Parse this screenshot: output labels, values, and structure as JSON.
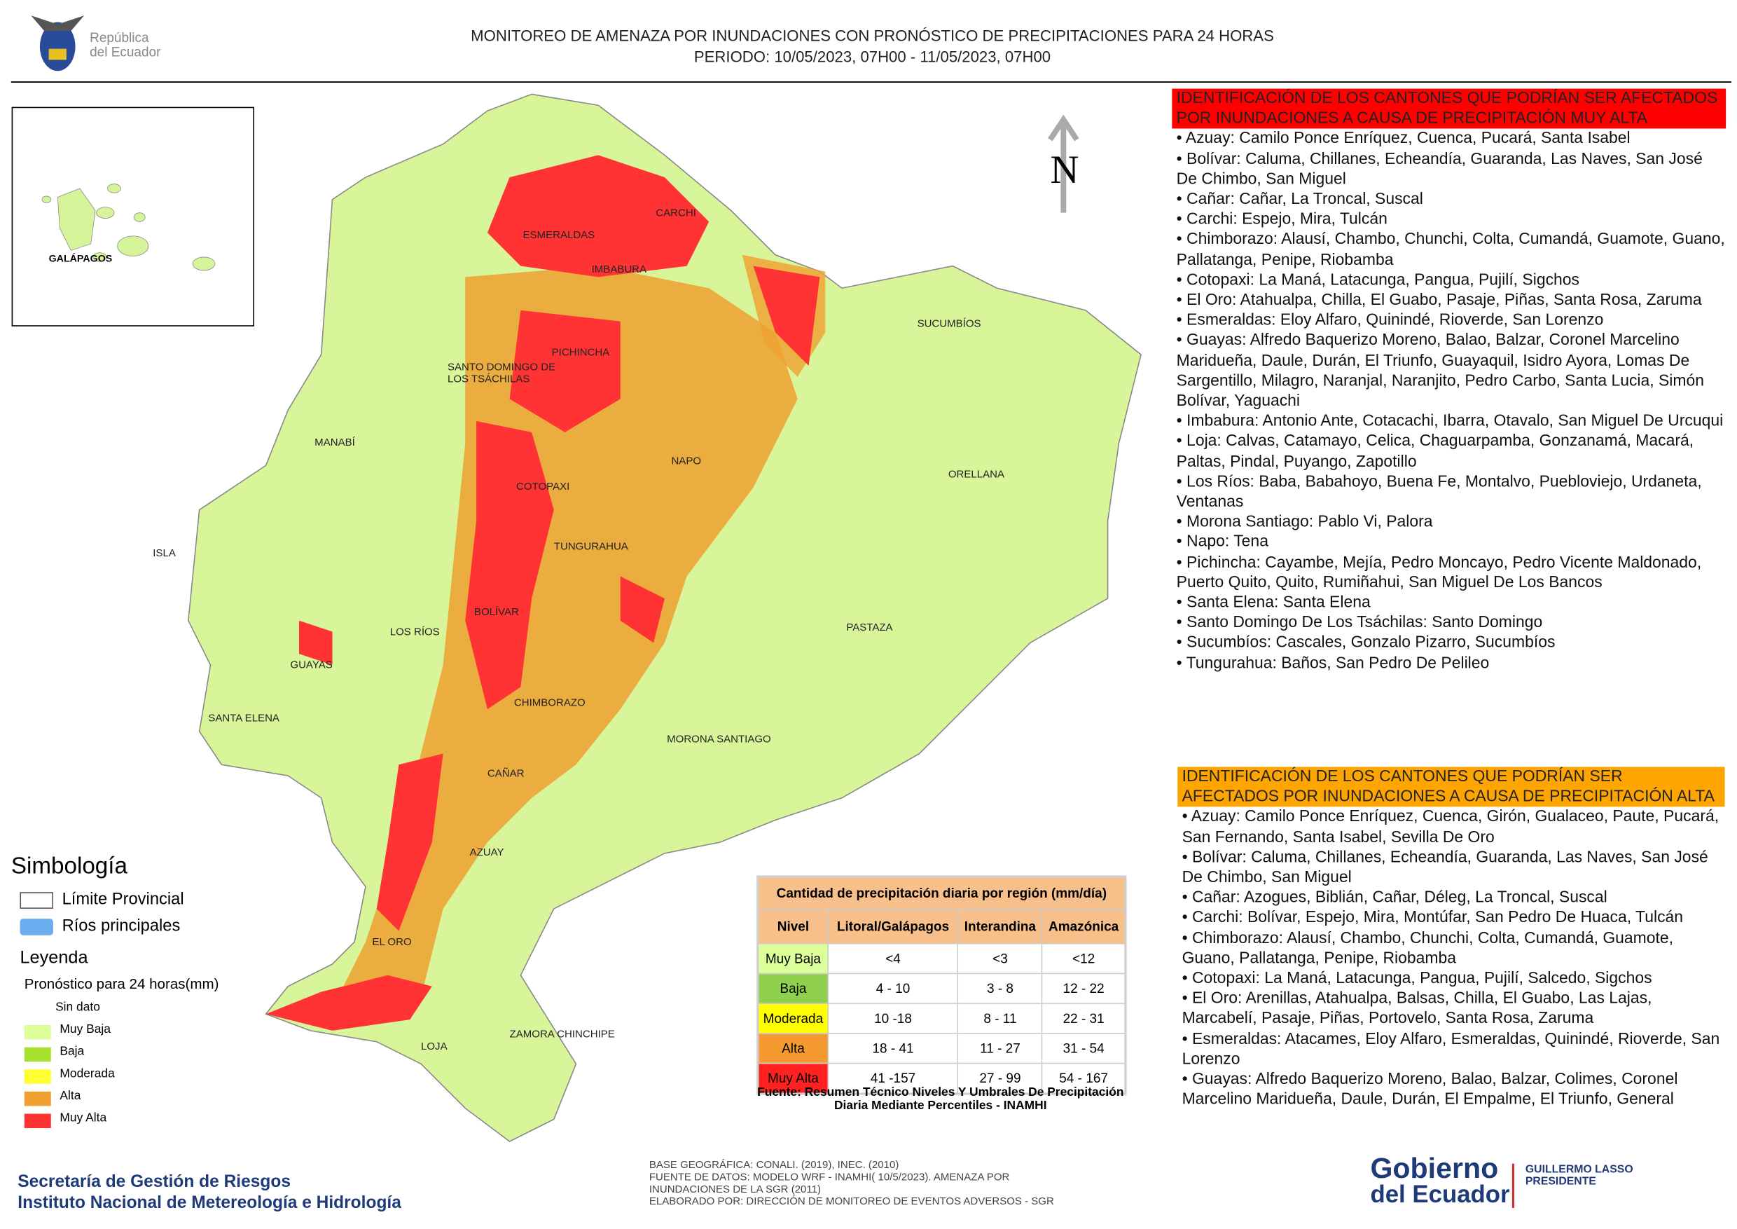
{
  "header": {
    "logo": [
      "República",
      "del Ecuador"
    ],
    "title": "MONITOREO DE AMENAZA POR INUNDACIONES  CON PRONÓSTICO DE  PRECIPITACIONES PARA 24 HORAS",
    "period": "PERIODO: 10/05/2023, 07H00 - 11/05/2023, 07H00"
  },
  "inset_label": "GALÁPAGOS",
  "north": "N",
  "map_labels": [
    "ESMERALDAS",
    "CARCHI",
    "IMBABURA",
    "SUCUMBÍOS",
    "PICHINCHA",
    "SANTO DOMINGO DE LOS TSÁCHILAS",
    "MANABÍ",
    "NAPO",
    "ORELLANA",
    "COTOPAXI",
    "TUNGURAHUA",
    "ISLA",
    "BOLÍVAR",
    "LOS RÍOS",
    "PASTAZA",
    "GUAYAS",
    "CHIMBORAZO",
    "SANTA ELENA",
    "MORONA SANTIAGO",
    "CAÑAR",
    "AZUAY",
    "EL ORO",
    "LOJA",
    "ZAMORA CHINCHIPE"
  ],
  "symbology": {
    "title": "Simbología",
    "items": [
      "Límite Provincial",
      "Ríos principales"
    ]
  },
  "legend": {
    "title": "Leyenda",
    "subtitle": "Pronóstico para 24 horas(mm)",
    "items": [
      {
        "label": "Sin dato",
        "color": null
      },
      {
        "label": "Muy Baja",
        "color": "#ddff99"
      },
      {
        "label": "Baja",
        "color": "#a8e02f"
      },
      {
        "label": "Moderada",
        "color": "#ffff33"
      },
      {
        "label": "Alta",
        "color": "#f0a030"
      },
      {
        "label": "Muy Alta",
        "color": "#ff3333"
      }
    ]
  },
  "table": {
    "title": "Cantidad de precipitación diaria por región (mm/día)",
    "headers": [
      "Nivel",
      "Litoral/Galápagos",
      "Interandina",
      "Amazónica"
    ],
    "rows": [
      [
        "Muy Baja",
        "<4",
        "<3",
        "<12"
      ],
      [
        "Baja",
        "4 - 10",
        "3 - 8",
        "12 - 22"
      ],
      [
        "Moderada",
        "10 -18",
        "8 - 11",
        "22 - 31"
      ],
      [
        "Alta",
        "18 - 41",
        "11 - 27",
        "31 - 54"
      ],
      [
        "Muy Alta",
        "41 -157",
        "27 - 99",
        "54 - 167"
      ]
    ],
    "row_colors": [
      "#ddff99",
      "#8fd14f",
      "#ffff00",
      "#f59a30",
      "#ff2020"
    ],
    "source": "Fuente: Resumen Técnico Niveles Y Umbrales De Precipitación Diaria Mediante Percentiles - INAMHI"
  },
  "lists": [
    {
      "heading": "IDENTIFICACIÓN DE LOS CANTONES QUE PODRÍAN SER AFECTADOS POR INUNDACIONES  A CAUSA DE PRECIPITACIÓN MUY ALTA",
      "color": "#ff0000",
      "items": [
        "• Azuay: Camilo Ponce Enríquez, Cuenca, Pucará, Santa Isabel",
        "• Bolívar: Caluma, Chillanes, Echeandía, Guaranda, Las Naves, San José De Chimbo, San Miguel",
        "• Cañar: Cañar, La Troncal, Suscal",
        "• Carchi: Espejo, Mira, Tulcán",
        "• Chimborazo: Alausí, Chambo, Chunchi, Colta, Cumandá, Guamote, Guano, Pallatanga, Penipe, Riobamba",
        "• Cotopaxi: La Maná, Latacunga, Pangua, Pujilí, Sigchos",
        "• El Oro: Atahualpa, Chilla, El Guabo, Pasaje, Piñas, Santa Rosa, Zaruma",
        "• Esmeraldas: Eloy Alfaro, Quinindé, Rioverde, San Lorenzo",
        "• Guayas: Alfredo Baquerizo Moreno, Balao, Balzar, Coronel Marcelino Maridueña, Daule, Durán, El Triunfo, Guayaquil, Isidro Ayora, Lomas De Sargentillo, Milagro, Naranjal, Naranjito, Pedro Carbo, Santa Lucia, Simón Bolívar, Yaguachi",
        "• Imbabura: Antonio Ante, Cotacachi, Ibarra, Otavalo, San Miguel De Urcuqui",
        "• Loja: Calvas, Catamayo, Celica, Chaguarpamba, Gonzanamá, Macará, Paltas, Pindal, Puyango, Zapotillo",
        "• Los Ríos: Baba, Babahoyo, Buena Fe, Montalvo, Puebloviejo, Urdaneta, Ventanas",
        "• Morona Santiago: Pablo Vi, Palora",
        "• Napo: Tena",
        "• Pichincha: Cayambe, Mejía, Pedro Moncayo, Pedro Vicente Maldonado, Puerto Quito, Quito, Rumiñahui, San Miguel De Los Bancos",
        "• Santa Elena: Santa Elena",
        "• Santo Domingo De Los Tsáchilas: Santo Domingo",
        "• Sucumbíos: Cascales, Gonzalo Pizarro, Sucumbíos",
        "• Tungurahua: Baños, San Pedro De Pelileo"
      ]
    },
    {
      "heading": "IDENTIFICACIÓN DE LOS CANTONES QUE  PODRÍAN SER AFECTADOS POR INUNDACIONES  A CAUSA DE PRECIPITACIÓN ALTA",
      "color": "#ffa500",
      "items": [
        "• Azuay: Camilo Ponce Enríquez, Cuenca, Girón, Gualaceo, Paute, Pucará, San Fernando, Santa Isabel, Sevilla De Oro",
        "• Bolívar: Caluma, Chillanes, Echeandía, Guaranda, Las Naves, San José De Chimbo, San Miguel",
        "• Cañar: Azogues, Biblián, Cañar, Déleg, La Troncal, Suscal",
        "• Carchi: Bolívar, Espejo, Mira, Montúfar, San Pedro De Huaca, Tulcán",
        "• Chimborazo: Alausí, Chambo, Chunchi, Colta, Cumandá, Guamote, Guano, Pallatanga, Penipe, Riobamba",
        "• Cotopaxi: La Maná, Latacunga, Pangua, Pujilí, Salcedo, Sigchos",
        "• El Oro: Arenillas, Atahualpa, Balsas, Chilla, El Guabo, Las Lajas, Marcabelí, Pasaje, Piñas, Portovelo, Santa Rosa, Zaruma",
        "• Esmeraldas: Atacames, Eloy Alfaro, Esmeraldas, Quinindé, Rioverde, San Lorenzo",
        "• Guayas: Alfredo Baquerizo Moreno, Balao, Balzar, Colimes, Coronel Marcelino Maridueña, Daule, Durán, El Empalme, El Triunfo, General"
      ]
    }
  ],
  "footer": {
    "agencies": [
      "Secretaría de Gestión de Riesgos",
      "Instituto Nacional de Metereología e Hidrología"
    ],
    "credits": [
      "BASE GEOGRÁFICA: CONALI. (2019), INEC. (2010)",
      "FUENTE DE DATOS: MODELO WRF - INAMHI( 10/5/2023).  AMENAZA POR INUNDACIONES DE LA SGR  (2011)",
      "ELABORADO POR: DIRECCIÓN DE MONITOREO DE EVENTOS ADVERSOS - SGR"
    ],
    "gov": [
      "Gobierno",
      "del Ecuador"
    ],
    "president": [
      "GUILLERMO LASSO",
      "PRESIDENTE"
    ]
  }
}
